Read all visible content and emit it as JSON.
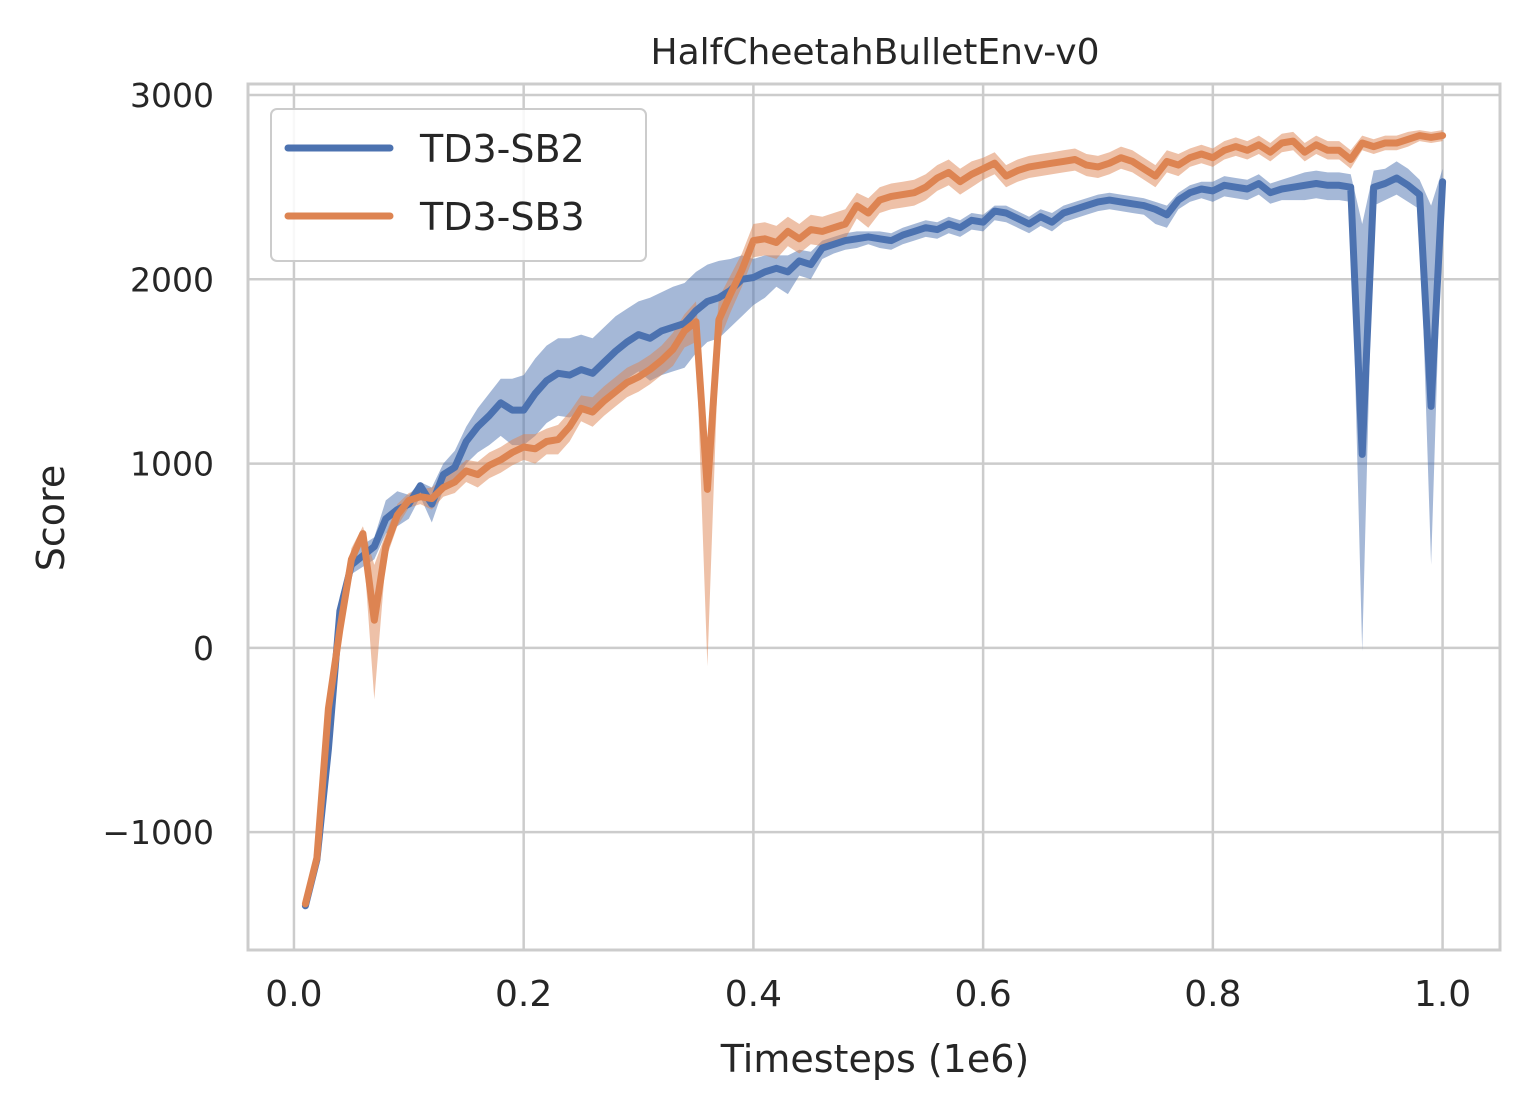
{
  "chart_data": {
    "type": "line",
    "title": "HalfCheetahBulletEnv-v0",
    "xlabel": "Timesteps (1e6)",
    "ylabel": "Score",
    "xlim": [
      -0.04,
      1.05
    ],
    "ylim": [
      -1640,
      3060
    ],
    "xticks": [
      0.0,
      0.2,
      0.4,
      0.6,
      0.8,
      1.0
    ],
    "xtick_labels": [
      "0.0",
      "0.2",
      "0.4",
      "0.6",
      "0.8",
      "1.0"
    ],
    "yticks": [
      -1000,
      0,
      1000,
      2000,
      3000
    ],
    "ytick_labels": [
      "−1000",
      "0",
      "1000",
      "2000",
      "3000"
    ],
    "grid": true,
    "legend_position": "top-left",
    "x": [
      0.01,
      0.02,
      0.03,
      0.04,
      0.05,
      0.06,
      0.07,
      0.08,
      0.09,
      0.1,
      0.11,
      0.12,
      0.13,
      0.14,
      0.15,
      0.16,
      0.17,
      0.18,
      0.19,
      0.2,
      0.21,
      0.22,
      0.23,
      0.24,
      0.25,
      0.26,
      0.27,
      0.28,
      0.29,
      0.3,
      0.31,
      0.32,
      0.33,
      0.34,
      0.35,
      0.36,
      0.37,
      0.38,
      0.39,
      0.4,
      0.41,
      0.42,
      0.43,
      0.44,
      0.45,
      0.46,
      0.47,
      0.48,
      0.49,
      0.5,
      0.51,
      0.52,
      0.53,
      0.54,
      0.55,
      0.56,
      0.57,
      0.58,
      0.59,
      0.6,
      0.61,
      0.62,
      0.63,
      0.64,
      0.65,
      0.66,
      0.67,
      0.68,
      0.69,
      0.7,
      0.71,
      0.72,
      0.73,
      0.74,
      0.75,
      0.76,
      0.77,
      0.78,
      0.79,
      0.8,
      0.81,
      0.82,
      0.83,
      0.84,
      0.85,
      0.86,
      0.87,
      0.88,
      0.89,
      0.9,
      0.91,
      0.92,
      0.93,
      0.94,
      0.95,
      0.96,
      0.97,
      0.98,
      0.99,
      1.0
    ],
    "series": [
      {
        "name": "TD3-SB2",
        "color": "#4c72b0",
        "values": [
          -1400,
          -1150,
          -550,
          200,
          450,
          500,
          550,
          700,
          750,
          780,
          880,
          780,
          940,
          980,
          1120,
          1200,
          1260,
          1330,
          1290,
          1290,
          1380,
          1450,
          1490,
          1480,
          1510,
          1490,
          1550,
          1610,
          1660,
          1700,
          1680,
          1720,
          1740,
          1760,
          1830,
          1880,
          1900,
          1940,
          2000,
          2010,
          2040,
          2060,
          2040,
          2100,
          2080,
          2170,
          2190,
          2210,
          2220,
          2230,
          2220,
          2210,
          2240,
          2260,
          2280,
          2270,
          2300,
          2280,
          2320,
          2310,
          2370,
          2360,
          2330,
          2300,
          2340,
          2310,
          2360,
          2380,
          2400,
          2420,
          2430,
          2420,
          2410,
          2400,
          2380,
          2350,
          2430,
          2470,
          2490,
          2480,
          2510,
          2500,
          2490,
          2520,
          2470,
          2490,
          2500,
          2510,
          2520,
          2510,
          2510,
          2500,
          1050,
          2500,
          2520,
          2550,
          2510,
          2460,
          1310,
          2530
        ],
        "upper": [
          -1380,
          -1130,
          -480,
          280,
          500,
          560,
          600,
          800,
          850,
          830,
          900,
          870,
          1000,
          1070,
          1200,
          1300,
          1380,
          1460,
          1460,
          1480,
          1570,
          1640,
          1680,
          1680,
          1700,
          1680,
          1740,
          1800,
          1840,
          1880,
          1900,
          1930,
          1960,
          1980,
          2040,
          2080,
          2100,
          2110,
          2130,
          2110,
          2130,
          2130,
          2130,
          2160,
          2150,
          2210,
          2230,
          2250,
          2260,
          2260,
          2260,
          2250,
          2280,
          2300,
          2320,
          2310,
          2340,
          2320,
          2360,
          2350,
          2400,
          2400,
          2370,
          2340,
          2380,
          2360,
          2400,
          2420,
          2440,
          2460,
          2470,
          2460,
          2450,
          2440,
          2420,
          2400,
          2470,
          2510,
          2530,
          2530,
          2560,
          2550,
          2540,
          2570,
          2520,
          2540,
          2560,
          2580,
          2590,
          2580,
          2580,
          2570,
          2300,
          2590,
          2600,
          2640,
          2600,
          2540,
          2400,
          2600
        ],
        "lower": [
          -1420,
          -1170,
          -620,
          120,
          400,
          440,
          480,
          620,
          660,
          700,
          820,
          680,
          860,
          880,
          1000,
          1060,
          1100,
          1150,
          1100,
          1100,
          1150,
          1220,
          1260,
          1250,
          1280,
          1260,
          1330,
          1400,
          1460,
          1500,
          1450,
          1480,
          1500,
          1520,
          1600,
          1660,
          1680,
          1740,
          1800,
          1860,
          1900,
          1960,
          1920,
          2020,
          2000,
          2110,
          2140,
          2160,
          2170,
          2190,
          2170,
          2160,
          2190,
          2210,
          2230,
          2220,
          2250,
          2230,
          2270,
          2260,
          2320,
          2310,
          2280,
          2250,
          2290,
          2260,
          2310,
          2330,
          2350,
          2370,
          2380,
          2370,
          2360,
          2350,
          2300,
          2280,
          2380,
          2420,
          2440,
          2420,
          2450,
          2440,
          2430,
          2460,
          2410,
          2430,
          2430,
          2430,
          2440,
          2430,
          2430,
          2420,
          -20,
          2400,
          2430,
          2460,
          2420,
          2380,
          450,
          2450
        ]
      },
      {
        "name": "TD3-SB3",
        "color": "#dd8452",
        "values": [
          -1390,
          -1140,
          -330,
          100,
          480,
          620,
          150,
          550,
          720,
          800,
          820,
          810,
          870,
          900,
          960,
          940,
          990,
          1020,
          1060,
          1090,
          1080,
          1120,
          1130,
          1200,
          1300,
          1280,
          1340,
          1390,
          1440,
          1470,
          1510,
          1560,
          1620,
          1720,
          1770,
          860,
          1780,
          1920,
          2050,
          2210,
          2220,
          2200,
          2260,
          2220,
          2270,
          2260,
          2280,
          2300,
          2400,
          2360,
          2430,
          2450,
          2460,
          2470,
          2500,
          2550,
          2580,
          2530,
          2570,
          2600,
          2630,
          2560,
          2590,
          2610,
          2620,
          2630,
          2640,
          2650,
          2620,
          2610,
          2630,
          2660,
          2640,
          2600,
          2560,
          2640,
          2620,
          2660,
          2680,
          2660,
          2700,
          2720,
          2700,
          2730,
          2690,
          2740,
          2750,
          2690,
          2730,
          2700,
          2700,
          2650,
          2740,
          2720,
          2740,
          2740,
          2760,
          2780,
          2770,
          2780
        ],
        "upper": [
          -1370,
          -1120,
          -270,
          170,
          540,
          660,
          450,
          620,
          780,
          840,
          860,
          870,
          920,
          960,
          1020,
          1010,
          1060,
          1090,
          1130,
          1160,
          1160,
          1190,
          1210,
          1280,
          1370,
          1360,
          1420,
          1470,
          1520,
          1550,
          1590,
          1640,
          1710,
          1810,
          1880,
          1100,
          1900,
          2020,
          2140,
          2300,
          2310,
          2290,
          2340,
          2300,
          2350,
          2340,
          2360,
          2380,
          2470,
          2440,
          2500,
          2520,
          2530,
          2540,
          2570,
          2620,
          2650,
          2600,
          2640,
          2660,
          2690,
          2620,
          2650,
          2670,
          2680,
          2690,
          2700,
          2710,
          2680,
          2670,
          2690,
          2720,
          2700,
          2660,
          2620,
          2700,
          2680,
          2710,
          2730,
          2710,
          2750,
          2770,
          2750,
          2780,
          2740,
          2790,
          2800,
          2740,
          2780,
          2750,
          2750,
          2700,
          2780,
          2760,
          2780,
          2780,
          2800,
          2810,
          2800,
          2810
        ],
        "lower": [
          -1410,
          -1160,
          -390,
          30,
          420,
          580,
          -280,
          480,
          660,
          760,
          780,
          750,
          820,
          840,
          900,
          870,
          920,
          950,
          990,
          1020,
          1000,
          1050,
          1050,
          1120,
          1230,
          1200,
          1260,
          1310,
          1360,
          1390,
          1430,
          1480,
          1530,
          1630,
          1660,
          -100,
          1660,
          1820,
          1960,
          2120,
          2130,
          2110,
          2180,
          2140,
          2190,
          2180,
          2200,
          2220,
          2330,
          2280,
          2360,
          2380,
          2390,
          2400,
          2430,
          2480,
          2510,
          2460,
          2500,
          2540,
          2570,
          2500,
          2530,
          2550,
          2560,
          2570,
          2580,
          2590,
          2560,
          2550,
          2570,
          2600,
          2580,
          2540,
          2500,
          2580,
          2560,
          2610,
          2630,
          2610,
          2650,
          2670,
          2650,
          2680,
          2640,
          2690,
          2700,
          2640,
          2680,
          2650,
          2650,
          2600,
          2700,
          2680,
          2700,
          2700,
          2720,
          2750,
          2740,
          2750
        ]
      }
    ]
  }
}
